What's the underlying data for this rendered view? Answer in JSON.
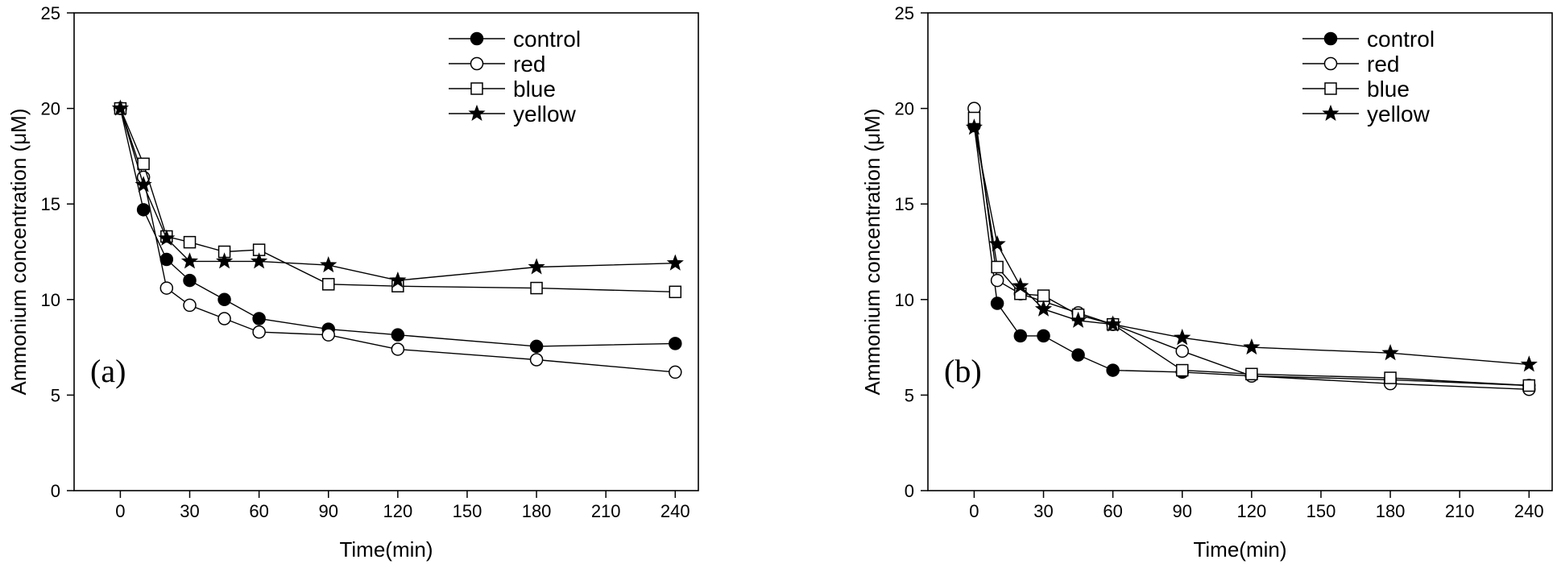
{
  "chart_data": [
    {
      "type": "line",
      "panel_label": "(a)",
      "xlabel": "Time(min)",
      "ylabel": "Ammonium concentration (μM)",
      "xlim": [
        -20,
        250
      ],
      "ylim": [
        0,
        25
      ],
      "xticks": [
        0,
        30,
        60,
        90,
        120,
        150,
        180,
        210,
        240
      ],
      "yticks": [
        0,
        5,
        10,
        15,
        20,
        25
      ],
      "legend_position": "top-right",
      "series": [
        {
          "name": "control",
          "marker": "filled-circle",
          "x": [
            0,
            10,
            20,
            30,
            45,
            60,
            90,
            120,
            180,
            240
          ],
          "y": [
            20,
            14.7,
            12.1,
            11.0,
            10.0,
            9.0,
            8.45,
            8.15,
            7.55,
            7.7
          ]
        },
        {
          "name": "red",
          "marker": "open-circle",
          "x": [
            0,
            10,
            20,
            30,
            45,
            60,
            90,
            120,
            180,
            240
          ],
          "y": [
            20,
            16.4,
            10.6,
            9.7,
            9.0,
            8.3,
            8.15,
            7.4,
            6.85,
            6.2
          ]
        },
        {
          "name": "blue",
          "marker": "open-square",
          "x": [
            0,
            10,
            20,
            30,
            45,
            60,
            90,
            120,
            180,
            240
          ],
          "y": [
            20,
            17.1,
            13.3,
            13.0,
            12.5,
            12.6,
            10.8,
            10.7,
            10.6,
            10.4
          ]
        },
        {
          "name": "yellow",
          "marker": "filled-star",
          "x": [
            0,
            10,
            20,
            30,
            45,
            60,
            90,
            120,
            180,
            240
          ],
          "y": [
            20,
            16.0,
            13.2,
            12.0,
            12.0,
            12.0,
            11.8,
            11.0,
            11.7,
            11.9
          ]
        }
      ]
    },
    {
      "type": "line",
      "panel_label": "(b)",
      "xlabel": "Time(min)",
      "ylabel": "Ammonium concentration (μM)",
      "xlim": [
        -20,
        250
      ],
      "ylim": [
        0,
        25
      ],
      "xticks": [
        0,
        30,
        60,
        90,
        120,
        150,
        180,
        210,
        240
      ],
      "yticks": [
        0,
        5,
        10,
        15,
        20,
        25
      ],
      "legend_position": "top-right",
      "series": [
        {
          "name": "control",
          "marker": "filled-circle",
          "x": [
            0,
            10,
            20,
            30,
            45,
            60,
            90,
            120,
            180,
            240
          ],
          "y": [
            19.1,
            9.8,
            8.1,
            8.1,
            7.1,
            6.3,
            6.2,
            6.0,
            5.8,
            5.5
          ]
        },
        {
          "name": "red",
          "marker": "open-circle",
          "x": [
            0,
            10,
            20,
            30,
            45,
            60,
            90,
            120,
            180,
            240
          ],
          "y": [
            20.0,
            11.0,
            10.3,
            9.9,
            9.3,
            8.7,
            7.3,
            6.0,
            5.6,
            5.3
          ]
        },
        {
          "name": "blue",
          "marker": "open-square",
          "x": [
            0,
            10,
            20,
            30,
            45,
            60,
            90,
            120,
            180,
            240
          ],
          "y": [
            19.5,
            11.7,
            10.3,
            10.2,
            9.2,
            8.7,
            6.3,
            6.1,
            5.9,
            5.5
          ]
        },
        {
          "name": "yellow",
          "marker": "filled-star",
          "x": [
            0,
            10,
            20,
            30,
            45,
            60,
            90,
            120,
            180,
            240
          ],
          "y": [
            19.0,
            12.9,
            10.7,
            9.5,
            8.9,
            8.7,
            8.0,
            7.5,
            7.2,
            6.6
          ]
        }
      ]
    }
  ]
}
